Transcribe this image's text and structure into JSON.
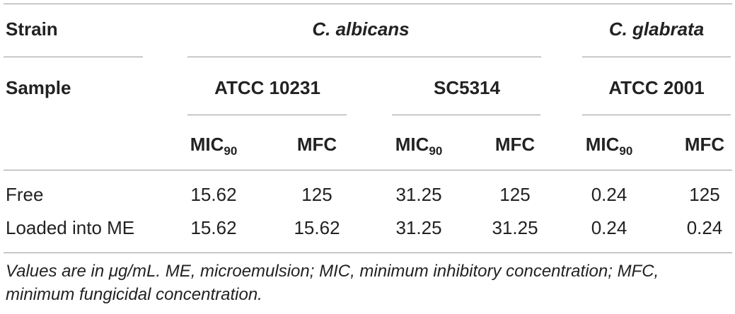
{
  "table": {
    "strain_label": "Strain",
    "sample_label": "Sample",
    "species": [
      "C. albicans",
      "C. glabrata"
    ],
    "strains": [
      "ATCC 10231",
      "SC5314",
      "ATCC 2001"
    ],
    "measure": {
      "mic_base": "MIC",
      "mic_sub": "90",
      "mfc": "MFC"
    },
    "rows": [
      {
        "label": "Free",
        "values": [
          "15.62",
          "125",
          "31.25",
          "125",
          "0.24",
          "125"
        ]
      },
      {
        "label": "Loaded into ME",
        "values": [
          "15.62",
          "15.62",
          "31.25",
          "31.25",
          "0.24",
          "0.24"
        ]
      }
    ]
  },
  "footnote": "Values are in μg/mL. ME, microemulsion; MIC, minimum inhibitory concentration; MFC, minimum fungicidal concentration."
}
